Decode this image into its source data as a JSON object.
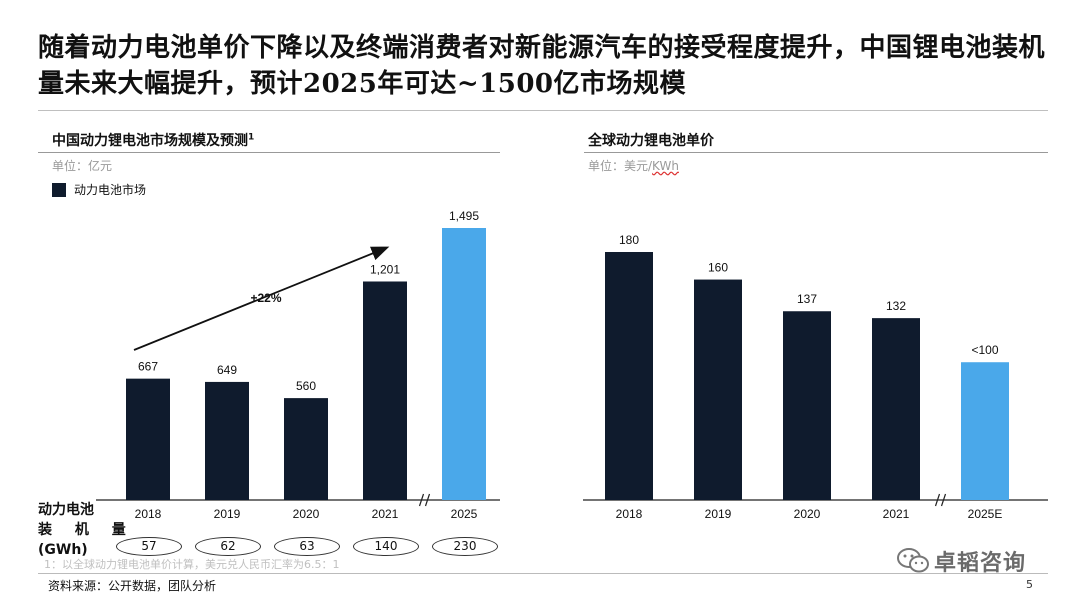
{
  "title": "随着动力电池单价下降以及终端消费者对新能源汽车的接受程度提升，中国锂电池装机量未来大幅提升，预计2025年可达~1500亿市场规模",
  "left": {
    "section_title": "中国动力锂电池市场规模及预测",
    "footnote_marker": "1",
    "unit_prefix": "单位：亿元",
    "legend": "动力电池市场",
    "growth_label": "+22%",
    "gwh_label_lines": [
      "动力电池",
      "装 机 量",
      "(GWh)"
    ],
    "gwh_values": [
      "57",
      "62",
      "63",
      "140",
      "230"
    ]
  },
  "right": {
    "section_title": "全球动力锂电池单价",
    "unit_prefix": "单位：美元/",
    "unit_underlined": "KWh"
  },
  "footnote": "1：以全球动力锂电池单价计算，美元兑人民币汇率为6.5：1",
  "source": "资料来源：公开数据，团队分析",
  "page_number": "5",
  "watermark": "卓韬咨询",
  "colors": {
    "dark": "#0f1b2d",
    "accent": "#4aa8ea"
  },
  "chart_data": [
    {
      "type": "bar",
      "title": "中国动力锂电池市场规模及预测",
      "ylabel": "单位：亿元",
      "categories": [
        "2018",
        "2019",
        "2020",
        "2021",
        "2025"
      ],
      "series": [
        {
          "name": "动力电池市场",
          "values": [
            667,
            649,
            560,
            1201,
            1495
          ]
        }
      ],
      "value_labels": [
        "667",
        "649",
        "560",
        "1,201",
        "1,495"
      ],
      "highlight": [
        false,
        false,
        false,
        false,
        true
      ],
      "axis_break_before": "2025",
      "ylim": [
        0,
        1600
      ],
      "annotation": "+22%"
    },
    {
      "type": "bar",
      "title": "全球动力锂电池单价",
      "ylabel": "单位：美元/KWh",
      "categories": [
        "2018",
        "2019",
        "2020",
        "2021",
        "2025E"
      ],
      "series": [
        {
          "values": [
            180,
            160,
            137,
            132,
            100
          ]
        }
      ],
      "value_labels": [
        "180",
        "160",
        "137",
        "132",
        "<100"
      ],
      "highlight": [
        false,
        false,
        false,
        false,
        true
      ],
      "axis_break_before": "2025E",
      "ylim": [
        0,
        200
      ]
    }
  ]
}
